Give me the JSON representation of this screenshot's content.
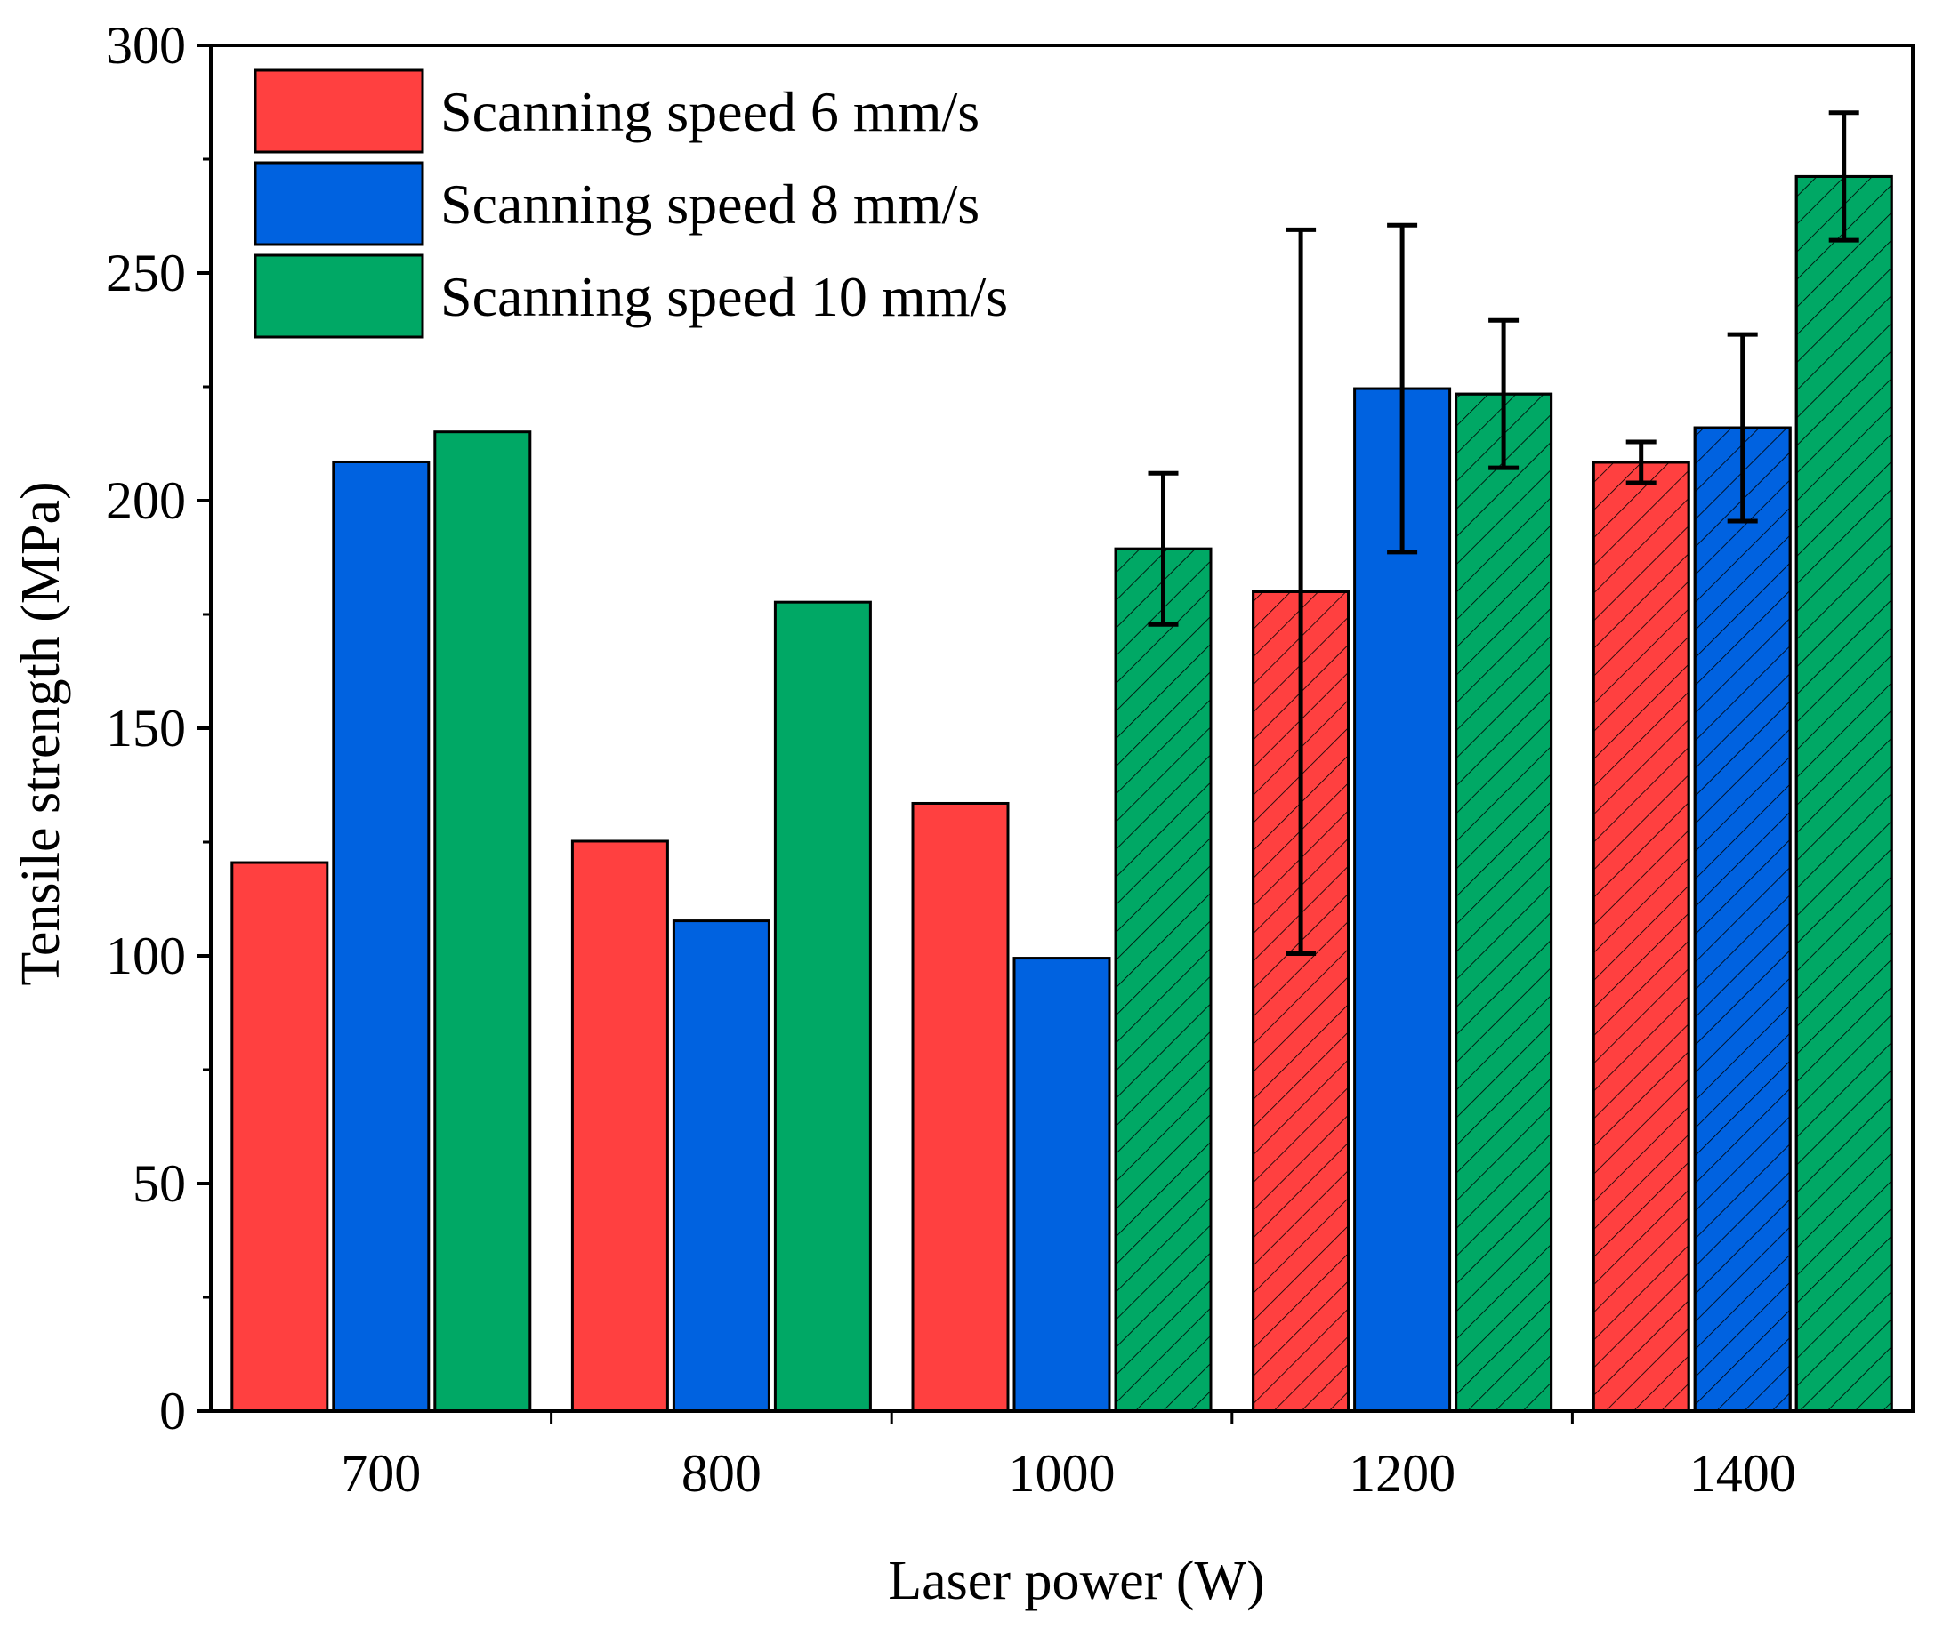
{
  "chart_data": {
    "type": "bar",
    "xlabel": "Laser power (W)",
    "ylabel": "Tensile strength (MPa)",
    "categories": [
      "700",
      "800",
      "1000",
      "1200",
      "1400"
    ],
    "ylim": [
      0,
      300
    ],
    "yticks": [
      0,
      50,
      100,
      150,
      200,
      250,
      300
    ],
    "grid": false,
    "legend_position": "top-left",
    "series": [
      {
        "name": "Scanning speed 6 mm/s",
        "color": "#ff4040",
        "values": [
          120.5,
          125.2,
          133.5,
          180,
          208.4
        ],
        "errors": [
          null,
          null,
          null,
          79.5,
          4.5
        ],
        "hatched": [
          false,
          false,
          false,
          true,
          true
        ]
      },
      {
        "name": "Scanning speed 8 mm/s",
        "color": "#0062e0",
        "values": [
          208.5,
          107.7,
          99.5,
          224.6,
          216
        ],
        "errors": [
          null,
          null,
          null,
          35.9,
          20.5
        ],
        "hatched": [
          false,
          false,
          false,
          false,
          true
        ]
      },
      {
        "name": "Scanning speed 10 mm/s",
        "color": "#00a865",
        "values": [
          215.1,
          177.7,
          189.4,
          223.4,
          271.2
        ],
        "errors": [
          null,
          null,
          16.6,
          16.2,
          14
        ],
        "hatched": [
          false,
          false,
          true,
          true,
          true
        ]
      }
    ]
  }
}
